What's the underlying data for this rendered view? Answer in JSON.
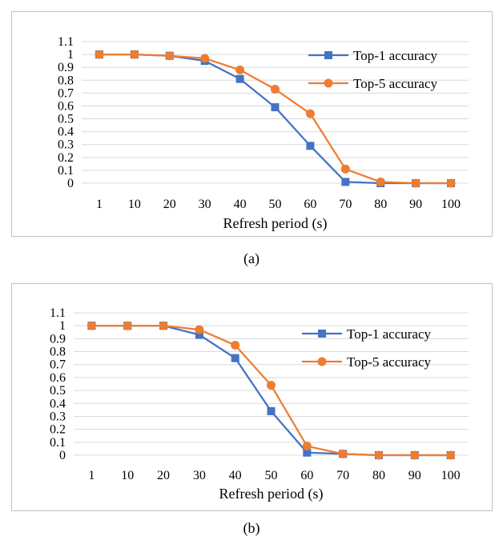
{
  "chart_data": [
    {
      "type": "line",
      "categories": [
        "1",
        "10",
        "20",
        "30",
        "40",
        "50",
        "60",
        "70",
        "80",
        "90",
        "100"
      ],
      "xlabel": "Refresh period (s)",
      "ylabel": "",
      "ylim": [
        0,
        1.1
      ],
      "yticks": [
        "0",
        "0.1",
        "0.2",
        "0.3",
        "0.4",
        "0.5",
        "0.6",
        "0.7",
        "0.8",
        "0.9",
        "1",
        "1.1"
      ],
      "grid": true,
      "legend": "top-right",
      "caption": "(a)",
      "series": [
        {
          "name": "Top-1 accuracy",
          "color": "#4472c4",
          "marker": "square",
          "values": [
            1.0,
            1.0,
            0.99,
            0.95,
            0.81,
            0.59,
            0.29,
            0.01,
            0.0,
            0.0,
            0.0
          ]
        },
        {
          "name": "Top-5 accuracy",
          "color": "#ed7d31",
          "marker": "circle",
          "values": [
            1.0,
            1.0,
            0.99,
            0.97,
            0.88,
            0.73,
            0.54,
            0.11,
            0.01,
            0.0,
            0.0
          ]
        }
      ]
    },
    {
      "type": "line",
      "categories": [
        "1",
        "10",
        "20",
        "30",
        "40",
        "50",
        "60",
        "70",
        "80",
        "90",
        "100"
      ],
      "xlabel": "Refresh period (s)",
      "ylabel": "",
      "ylim": [
        0,
        1.1
      ],
      "yticks": [
        "0",
        "0.1",
        "0.2",
        "0.3",
        "0.4",
        "0.5",
        "0.6",
        "0.7",
        "0.8",
        "0.9",
        "1",
        "1.1"
      ],
      "grid": true,
      "legend": "top-right",
      "caption": "(b)",
      "series": [
        {
          "name": "Top-1 accuracy",
          "color": "#4472c4",
          "marker": "square",
          "values": [
            1.0,
            1.0,
            1.0,
            0.93,
            0.75,
            0.34,
            0.02,
            0.01,
            0.0,
            0.0,
            0.0
          ]
        },
        {
          "name": "Top-5 accuracy",
          "color": "#ed7d31",
          "marker": "circle",
          "values": [
            1.0,
            1.0,
            1.0,
            0.97,
            0.85,
            0.54,
            0.07,
            0.01,
            0.0,
            0.0,
            0.0
          ]
        }
      ]
    }
  ]
}
